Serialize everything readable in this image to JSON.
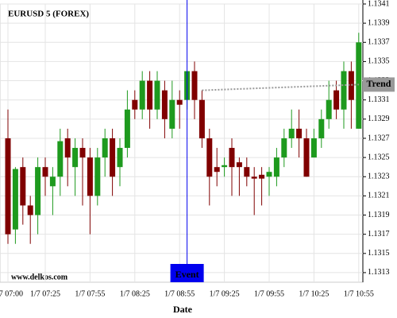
{
  "chart_data": {
    "type": "candlestick",
    "title": "EURUSD 5 (FOREX)",
    "source": "www.delkos.com",
    "x_label": "Date",
    "categories": [
      "1/7 07:00",
      null,
      null,
      null,
      null,
      "1/7 07:25",
      null,
      null,
      null,
      null,
      null,
      "1/7 07:55",
      null,
      null,
      null,
      null,
      null,
      "1/7 08:25",
      null,
      null,
      null,
      null,
      null,
      "1/7 08:55",
      null,
      null,
      null,
      null,
      null,
      "1/7 09:25",
      null,
      null,
      null,
      null,
      null,
      "1/7 09:55",
      null,
      null,
      null,
      null,
      null,
      "1/7 10:25",
      null,
      null,
      null,
      null,
      null,
      "1/7 10:55"
    ],
    "series": [
      {
        "up_color": "#1e9a1e",
        "down_color": "#800000",
        "open": [
          1.1327,
          1.13175,
          1.1324,
          1.132,
          1.1319,
          1.1324,
          1.1322,
          1.1323,
          1.1327,
          1.1324,
          1.1326,
          1.1325,
          1.1321,
          1.1325,
          1.1327,
          1.1324,
          1.1326,
          1.1331,
          1.133,
          1.1333,
          1.133,
          1.1332,
          1.1328,
          1.1331,
          1.1331,
          1.1334,
          1.1331,
          1.1327,
          1.1324,
          1.1324,
          1.1326,
          1.13245,
          1.1324,
          1.1323,
          1.13232,
          1.1323,
          1.1323,
          1.1325,
          1.1327,
          1.1328,
          1.1327,
          1.1325,
          1.1327,
          1.1329,
          1.1332,
          1.133,
          1.1334,
          1.1328
        ],
        "high": [
          1.133,
          1.1324,
          1.1325,
          1.1321,
          1.1325,
          1.1325,
          1.1324,
          1.1328,
          1.1328,
          1.1327,
          1.1327,
          1.1326,
          1.1326,
          1.1328,
          1.1328,
          1.1327,
          1.1332,
          1.1332,
          1.1334,
          1.1334,
          1.1334,
          1.1333,
          1.1333,
          1.1332,
          1.1334,
          1.1335,
          1.1332,
          1.1328,
          1.1326,
          1.1325,
          1.1327,
          1.1325,
          1.1325,
          1.1324,
          1.1324,
          1.1324,
          1.1326,
          1.1328,
          1.133,
          1.133,
          1.1328,
          1.1328,
          1.133,
          1.1333,
          1.1333,
          1.1335,
          1.1335,
          1.1338
        ],
        "low": [
          1.1316,
          1.1316,
          1.1318,
          1.1316,
          1.1317,
          1.1321,
          1.1319,
          1.1321,
          1.1322,
          1.1321,
          1.132,
          1.1317,
          1.132,
          1.1323,
          1.1321,
          1.1322,
          1.1325,
          1.1329,
          1.1329,
          1.1328,
          1.1329,
          1.1327,
          1.1327,
          1.1328,
          1.133,
          1.1329,
          1.1326,
          1.132,
          1.1322,
          1.1323,
          1.1321,
          1.1321,
          1.1322,
          1.1319,
          1.132,
          1.1321,
          1.1322,
          1.1324,
          1.1326,
          1.1325,
          1.1323,
          1.1325,
          1.1326,
          1.1328,
          1.1329,
          1.1328,
          1.1328,
          1.1328
        ],
        "close": [
          1.1317,
          1.13238,
          1.132,
          1.1319,
          1.1324,
          1.1323,
          1.1323,
          1.13267,
          1.1325,
          1.1326,
          1.1325,
          1.1321,
          1.1325,
          1.1327,
          1.1323,
          1.1326,
          1.133,
          1.133,
          1.1333,
          1.133,
          1.1333,
          1.1329,
          1.1331,
          1.13305,
          1.1334,
          1.1331,
          1.1327,
          1.1323,
          1.13235,
          1.13242,
          1.1324,
          1.1324,
          1.1323,
          1.13228,
          1.13228,
          1.13235,
          1.1325,
          1.1327,
          1.1328,
          1.1327,
          1.1323,
          1.1327,
          1.1329,
          1.1331,
          1.133,
          1.1334,
          1.1331,
          1.1337
        ]
      }
    ],
    "trend": {
      "label": "Trend",
      "color": "#999999",
      "from": 26,
      "to": 47,
      "values": [
        1.1332,
        1.13326
      ]
    },
    "event": {
      "label": "Event",
      "color": "#0000ee",
      "index": 24
    },
    "ylim": [
      1.1312,
      1.1341
    ],
    "yticks": [
      1.1313,
      1.1315,
      1.1317,
      1.1319,
      1.1321,
      1.1323,
      1.1325,
      1.1327,
      1.1329,
      1.1331,
      1.1333,
      1.1335,
      1.1337,
      1.1339,
      1.1341
    ],
    "grid": true
  }
}
